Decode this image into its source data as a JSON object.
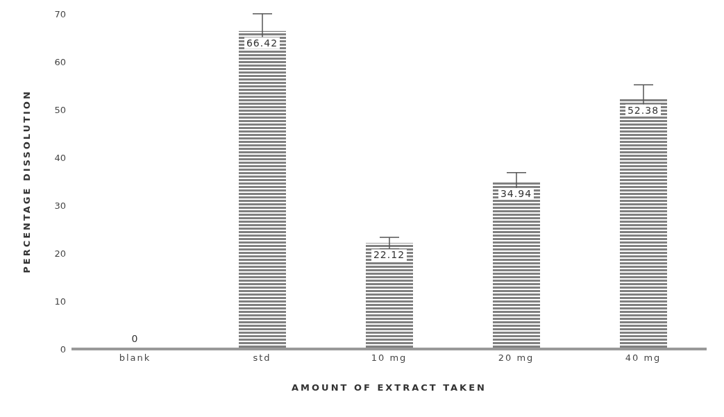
{
  "chart_data": {
    "type": "bar",
    "xlabel": "AMOUNT OF EXTRACT TAKEN",
    "ylabel": "PERCENTAGE DISSOLUTION",
    "categories": [
      "blank",
      "std",
      "10 mg",
      "20 mg",
      "40 mg"
    ],
    "values": [
      0,
      66.42,
      22.12,
      34.94,
      52.38
    ],
    "errors": [
      null,
      3.6,
      1.2,
      1.9,
      2.8
    ],
    "color": "#808080",
    "ylim": [
      0,
      70
    ],
    "yticks": [
      0,
      10,
      20,
      30,
      40,
      50,
      60,
      70
    ],
    "grid": false,
    "data_labels": true
  }
}
